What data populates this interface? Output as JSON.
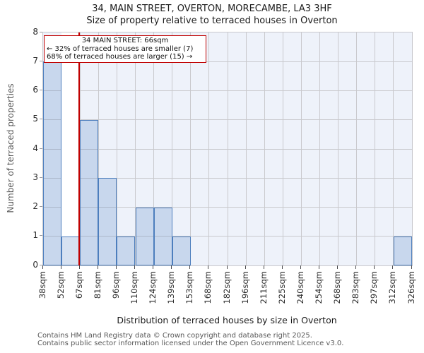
{
  "title": "34, MAIN STREET, OVERTON, MORECAMBE, LA3 3HF",
  "subtitle": "Size of property relative to terraced houses in Overton",
  "annotation": {
    "line1": "34 MAIN STREET: 66sqm",
    "line2": "← 32% of terraced houses are smaller (7)",
    "line3": "68% of terraced houses are larger (15) →"
  },
  "footer": {
    "line1": "Contains HM Land Registry data © Crown copyright and database right 2025.",
    "line2": "Contains public sector information licensed under the Open Government Licence v3.0."
  },
  "chart_data": {
    "type": "bar",
    "title": "34, MAIN STREET, OVERTON, MORECAMBE, LA3 3HF",
    "subtitle": "Size of property relative to terraced houses in Overton",
    "xlabel": "Distribution of terraced houses by size in Overton",
    "ylabel": "Number of terraced properties",
    "bin_edges_sqm": [
      38,
      52,
      67,
      81,
      96,
      110,
      124,
      139,
      153,
      168,
      182,
      196,
      211,
      225,
      240,
      254,
      268,
      283,
      297,
      312,
      326
    ],
    "x_tick_labels": [
      "38sqm",
      "52sqm",
      "67sqm",
      "81sqm",
      "96sqm",
      "110sqm",
      "124sqm",
      "139sqm",
      "153sqm",
      "168sqm",
      "182sqm",
      "196sqm",
      "211sqm",
      "225sqm",
      "240sqm",
      "254sqm",
      "268sqm",
      "283sqm",
      "297sqm",
      "312sqm",
      "326sqm"
    ],
    "values": [
      7,
      1,
      5,
      3,
      1,
      2,
      2,
      1,
      0,
      0,
      0,
      0,
      0,
      0,
      0,
      0,
      0,
      0,
      0,
      1
    ],
    "ylim": [
      0,
      8
    ],
    "y_ticks": [
      0,
      1,
      2,
      3,
      4,
      5,
      6,
      7,
      8
    ],
    "grid": true,
    "legend": "none",
    "marker": {
      "value": 66,
      "label": "34 MAIN STREET: 66sqm",
      "smaller_pct": 32,
      "smaller_count": 7,
      "larger_pct": 68,
      "larger_count": 15
    },
    "highlight_bin_index": 1,
    "colors": {
      "bar_fill": "rgba(70,120,190,0.22)",
      "bar_edge": "#4d7ebd",
      "plot_bg": "#eef2fa",
      "grid": "#c9c9cd",
      "highlight_band": "#ffffff",
      "marker_line": "#c00000",
      "annotation_border": "#c00000"
    }
  }
}
